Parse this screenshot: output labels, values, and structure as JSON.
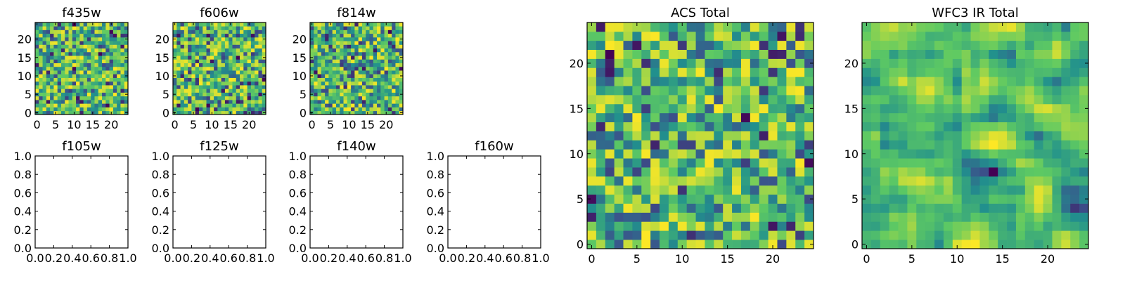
{
  "colors": {
    "background": "#ffffff",
    "axis": "#000000",
    "colormap": [
      "#440154",
      "#3b528b",
      "#21908d",
      "#5dc963",
      "#fde725"
    ]
  },
  "chart_data": [
    {
      "id": "f435w",
      "type": "heatmap",
      "title": "f435w",
      "empty": false,
      "grid_size": 25,
      "seed": 11,
      "smooth": 0,
      "xlim": [
        -0.5,
        24.5
      ],
      "ylim": [
        -0.5,
        24.5
      ],
      "xticks": [
        0,
        5,
        10,
        15,
        20
      ],
      "yticks": [
        0,
        5,
        10,
        15,
        20
      ],
      "xtick_labels": [
        "0",
        "5",
        "10",
        "15",
        "20"
      ],
      "ytick_labels": [
        "0",
        "5",
        "10",
        "15",
        "20"
      ]
    },
    {
      "id": "f606w",
      "type": "heatmap",
      "title": "f606w",
      "empty": false,
      "grid_size": 25,
      "seed": 23,
      "smooth": 0,
      "xlim": [
        -0.5,
        24.5
      ],
      "ylim": [
        -0.5,
        24.5
      ],
      "xticks": [
        0,
        5,
        10,
        15,
        20
      ],
      "yticks": [
        0,
        5,
        10,
        15,
        20
      ],
      "xtick_labels": [
        "0",
        "5",
        "10",
        "15",
        "20"
      ],
      "ytick_labels": [
        "0",
        "5",
        "10",
        "15",
        "20"
      ]
    },
    {
      "id": "f814w",
      "type": "heatmap",
      "title": "f814w",
      "empty": false,
      "grid_size": 25,
      "seed": 37,
      "smooth": 0,
      "xlim": [
        -0.5,
        24.5
      ],
      "ylim": [
        -0.5,
        24.5
      ],
      "xticks": [
        0,
        5,
        10,
        15,
        20
      ],
      "yticks": [
        0,
        5,
        10,
        15,
        20
      ],
      "xtick_labels": [
        "0",
        "5",
        "10",
        "15",
        "20"
      ],
      "ytick_labels": [
        "0",
        "5",
        "10",
        "15",
        "20"
      ]
    },
    {
      "id": "f105w",
      "type": "heatmap",
      "title": "f105w",
      "empty": true,
      "xlim": [
        0.0,
        1.0
      ],
      "ylim": [
        0.0,
        1.0
      ],
      "xticks": [
        0.0,
        0.2,
        0.4,
        0.6,
        0.8,
        1.0
      ],
      "yticks": [
        0.0,
        0.2,
        0.4,
        0.6,
        0.8,
        1.0
      ],
      "xtick_labels": [
        "0.0",
        "0.2",
        "0.4",
        "0.6",
        "0.8",
        "1.0"
      ],
      "ytick_labels": [
        "0.0",
        "0.2",
        "0.4",
        "0.6",
        "0.8",
        "1.0"
      ]
    },
    {
      "id": "f125w",
      "type": "heatmap",
      "title": "f125w",
      "empty": true,
      "xlim": [
        0.0,
        1.0
      ],
      "ylim": [
        0.0,
        1.0
      ],
      "xticks": [
        0.0,
        0.2,
        0.4,
        0.6,
        0.8,
        1.0
      ],
      "yticks": [
        0.0,
        0.2,
        0.4,
        0.6,
        0.8,
        1.0
      ],
      "xtick_labels": [
        "0.0",
        "0.2",
        "0.4",
        "0.6",
        "0.8",
        "1.0"
      ],
      "ytick_labels": [
        "0.0",
        "0.2",
        "0.4",
        "0.6",
        "0.8",
        "1.0"
      ]
    },
    {
      "id": "f140w",
      "type": "heatmap",
      "title": "f140w",
      "empty": true,
      "xlim": [
        0.0,
        1.0
      ],
      "ylim": [
        0.0,
        1.0
      ],
      "xticks": [
        0.0,
        0.2,
        0.4,
        0.6,
        0.8,
        1.0
      ],
      "yticks": [
        0.0,
        0.2,
        0.4,
        0.6,
        0.8,
        1.0
      ],
      "xtick_labels": [
        "0.0",
        "0.2",
        "0.4",
        "0.6",
        "0.8",
        "1.0"
      ],
      "ytick_labels": [
        "0.0",
        "0.2",
        "0.4",
        "0.6",
        "0.8",
        "1.0"
      ]
    },
    {
      "id": "f160w",
      "type": "heatmap",
      "title": "f160w",
      "empty": true,
      "xlim": [
        0.0,
        1.0
      ],
      "ylim": [
        0.0,
        1.0
      ],
      "xticks": [
        0.0,
        0.2,
        0.4,
        0.6,
        0.8,
        1.0
      ],
      "yticks": [
        0.0,
        0.2,
        0.4,
        0.6,
        0.8,
        1.0
      ],
      "xtick_labels": [
        "0.0",
        "0.2",
        "0.4",
        "0.6",
        "0.8",
        "1.0"
      ],
      "ytick_labels": [
        "0.0",
        "0.2",
        "0.4",
        "0.6",
        "0.8",
        "1.0"
      ]
    },
    {
      "id": "acs_total",
      "type": "heatmap",
      "title": "ACS Total",
      "empty": false,
      "grid_size": 25,
      "seed": 53,
      "smooth": 0,
      "xlim": [
        -0.5,
        24.5
      ],
      "ylim": [
        -0.5,
        24.5
      ],
      "xticks": [
        0,
        5,
        10,
        15,
        20
      ],
      "yticks": [
        0,
        5,
        10,
        15,
        20
      ],
      "xtick_labels": [
        "0",
        "5",
        "10",
        "15",
        "20"
      ],
      "ytick_labels": [
        "0",
        "5",
        "10",
        "15",
        "20"
      ]
    },
    {
      "id": "wfc3_ir_total",
      "type": "heatmap",
      "title": "WFC3 IR Total",
      "empty": false,
      "grid_size": 25,
      "seed": 71,
      "smooth": 1,
      "xlim": [
        -0.5,
        24.5
      ],
      "ylim": [
        -0.5,
        24.5
      ],
      "xticks": [
        0,
        5,
        10,
        15,
        20
      ],
      "yticks": [
        0,
        5,
        10,
        15,
        20
      ],
      "xtick_labels": [
        "0",
        "5",
        "10",
        "15",
        "20"
      ],
      "ytick_labels": [
        "0",
        "5",
        "10",
        "15",
        "20"
      ]
    }
  ]
}
